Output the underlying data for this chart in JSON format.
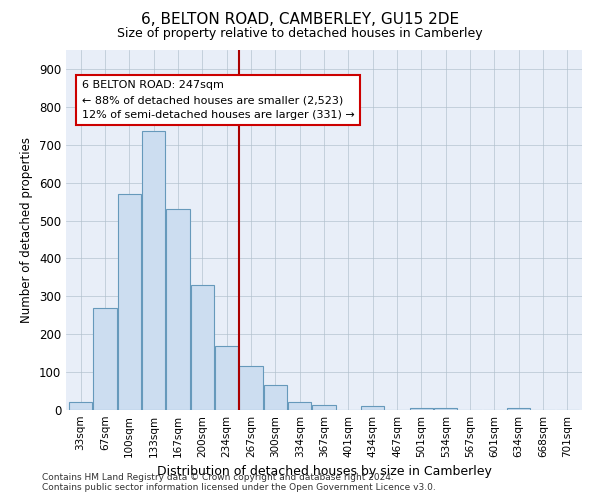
{
  "title": "6, BELTON ROAD, CAMBERLEY, GU15 2DE",
  "subtitle": "Size of property relative to detached houses in Camberley",
  "xlabel": "Distribution of detached houses by size in Camberley",
  "ylabel": "Number of detached properties",
  "bar_labels": [
    "33sqm",
    "67sqm",
    "100sqm",
    "133sqm",
    "167sqm",
    "200sqm",
    "234sqm",
    "267sqm",
    "300sqm",
    "334sqm",
    "367sqm",
    "401sqm",
    "434sqm",
    "467sqm",
    "501sqm",
    "534sqm",
    "567sqm",
    "601sqm",
    "634sqm",
    "668sqm",
    "701sqm"
  ],
  "bar_values": [
    20,
    270,
    570,
    735,
    530,
    330,
    170,
    115,
    65,
    20,
    14,
    0,
    10,
    0,
    5,
    5,
    0,
    0,
    5,
    0,
    0
  ],
  "bar_color": "#ccddf0",
  "bar_edge_color": "#6699bb",
  "vline_x": 6.5,
  "vline_color": "#aa0000",
  "annotation_title": "6 BELTON ROAD: 247sqm",
  "annotation_line1": "← 88% of detached houses are smaller (2,523)",
  "annotation_line2": "12% of semi-detached houses are larger (331) →",
  "annotation_box_color": "#cc0000",
  "ylim": [
    0,
    950
  ],
  "yticks": [
    0,
    100,
    200,
    300,
    400,
    500,
    600,
    700,
    800,
    900
  ],
  "footer_line1": "Contains HM Land Registry data © Crown copyright and database right 2024.",
  "footer_line2": "Contains public sector information licensed under the Open Government Licence v3.0.",
  "bg_color": "#ffffff",
  "plot_bg_color": "#e8eef8"
}
